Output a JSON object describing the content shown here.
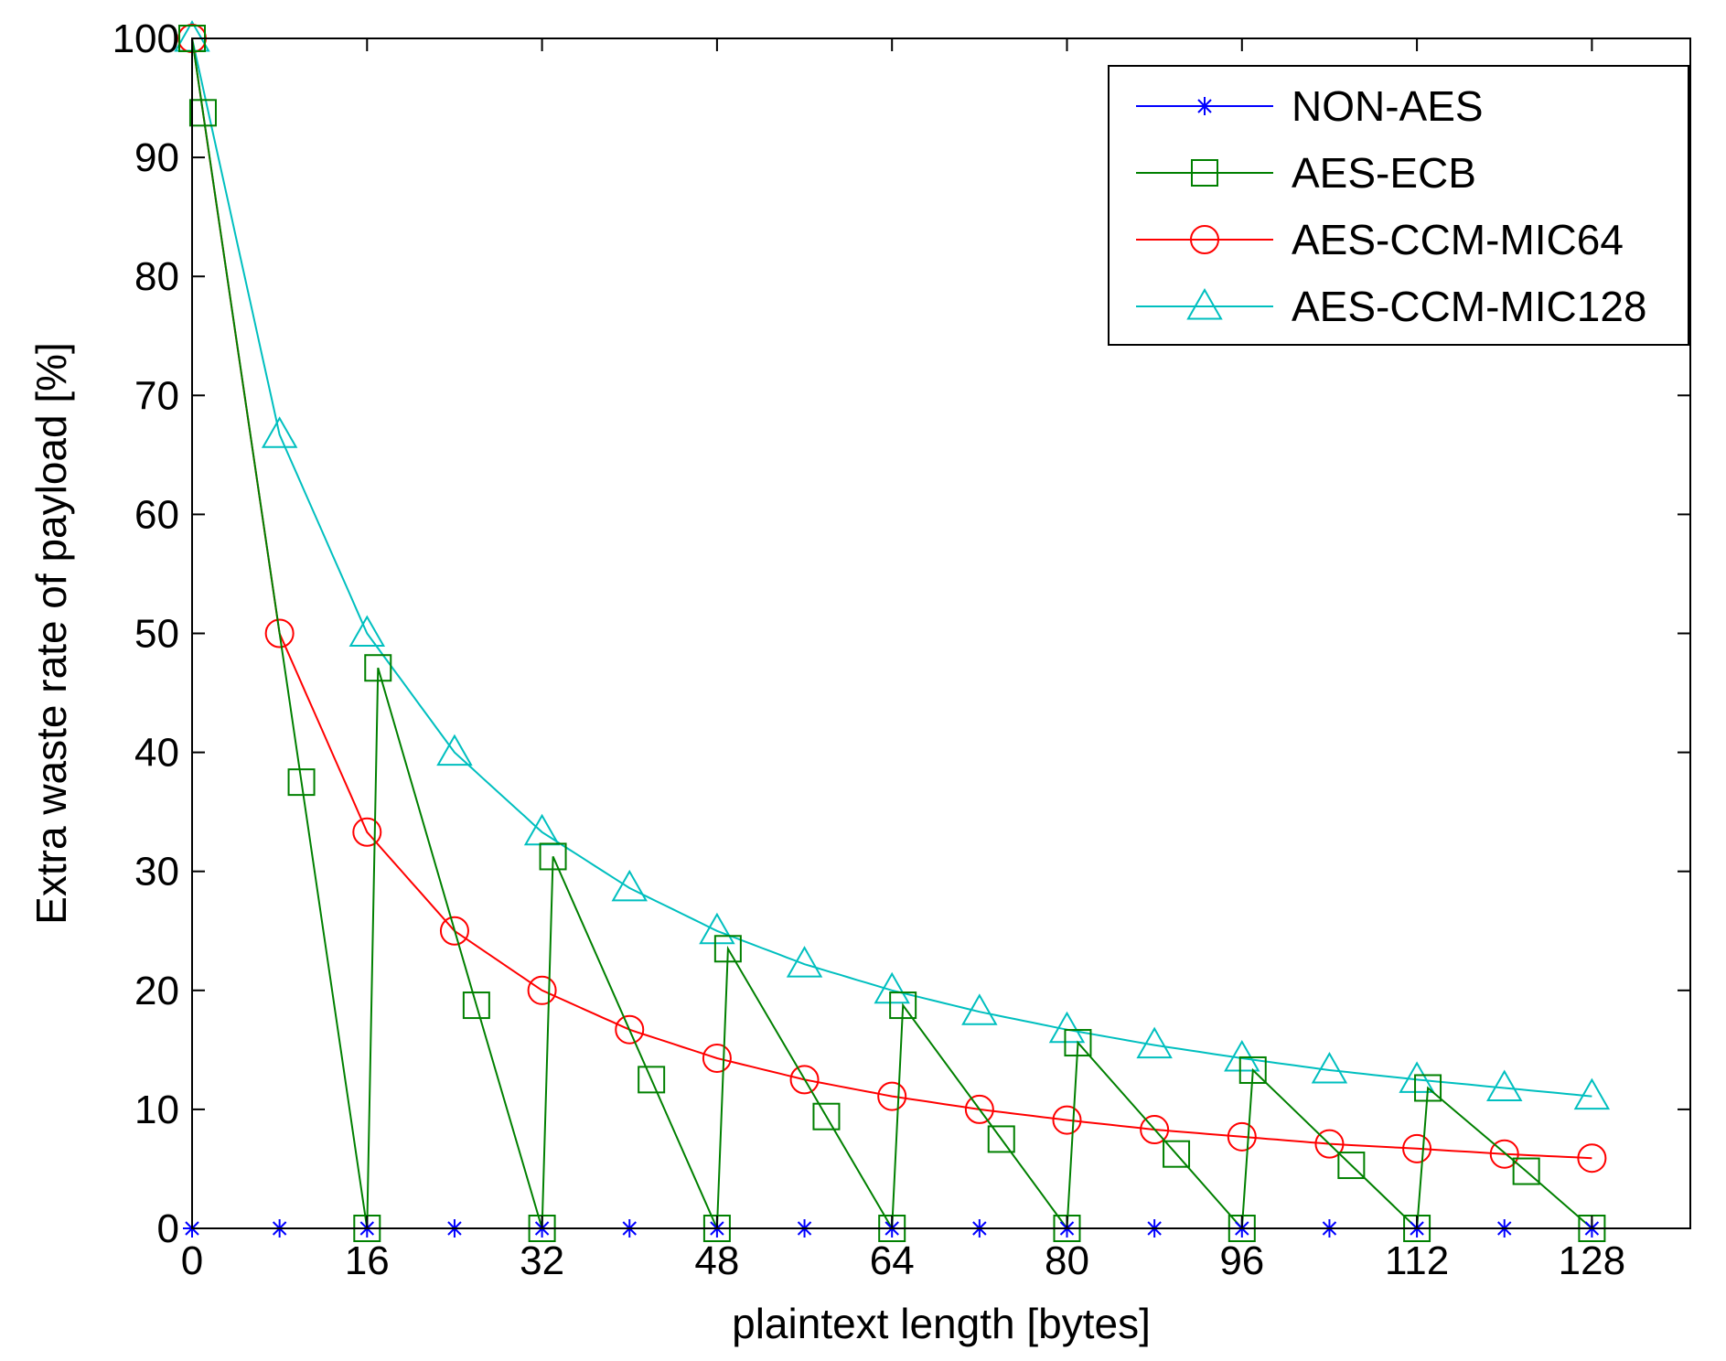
{
  "chart_data": {
    "type": "line",
    "title": "",
    "xlabel": "plaintext length [bytes]",
    "ylabel": "Extra waste rate of payload [%]",
    "xlim": [
      0,
      137
    ],
    "ylim": [
      0,
      100
    ],
    "xticks": [
      0,
      16,
      32,
      48,
      64,
      80,
      96,
      112,
      128
    ],
    "yticks": [
      0,
      10,
      20,
      30,
      40,
      50,
      60,
      70,
      80,
      90,
      100
    ],
    "grid": false,
    "legend_position": "top-right",
    "series": [
      {
        "name": "NON-AES",
        "color": "#0000ff",
        "marker": "asterisk",
        "x": [
          0,
          8,
          16,
          24,
          32,
          40,
          48,
          56,
          64,
          72,
          80,
          88,
          96,
          104,
          112,
          120,
          128
        ],
        "y": [
          0,
          0,
          0,
          0,
          0,
          0,
          0,
          0,
          0,
          0,
          0,
          0,
          0,
          0,
          0,
          0,
          0
        ]
      },
      {
        "name": "AES-ECB",
        "color": "#008000",
        "marker": "square",
        "x": [
          0,
          1,
          10,
          16,
          17,
          26,
          32,
          33,
          42,
          48,
          49,
          58,
          64,
          65,
          74,
          80,
          81,
          90,
          96,
          97,
          106,
          112,
          113,
          122,
          128
        ],
        "y": [
          100,
          93.75,
          37.5,
          0,
          47.1,
          18.75,
          0,
          31.25,
          12.5,
          0,
          23.5,
          9.4,
          0,
          18.75,
          7.5,
          0,
          15.6,
          6.25,
          0,
          13.3,
          5.3,
          0,
          11.8,
          4.8,
          0
        ]
      },
      {
        "name": "AES-CCM-MIC64",
        "color": "#ff0000",
        "marker": "circle",
        "x": [
          0,
          8,
          16,
          24,
          32,
          40,
          48,
          56,
          64,
          72,
          80,
          88,
          96,
          104,
          112,
          120,
          128
        ],
        "y": [
          100,
          50,
          33.3,
          25,
          20,
          16.7,
          14.3,
          12.5,
          11.1,
          10,
          9.1,
          8.3,
          7.7,
          7.1,
          6.7,
          6.25,
          5.9
        ]
      },
      {
        "name": "AES-CCM-MIC128",
        "color": "#00bfbf",
        "marker": "triangle",
        "x": [
          0,
          8,
          16,
          24,
          32,
          40,
          48,
          56,
          64,
          72,
          80,
          88,
          96,
          104,
          112,
          120,
          128
        ],
        "y": [
          100,
          66.7,
          50,
          40,
          33.3,
          28.6,
          25,
          22.2,
          20,
          18.2,
          16.7,
          15.4,
          14.3,
          13.3,
          12.5,
          11.8,
          11.1
        ]
      }
    ]
  }
}
